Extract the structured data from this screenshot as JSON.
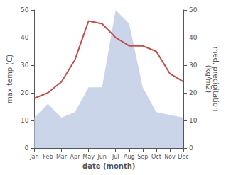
{
  "chart_data": {
    "type": "line",
    "categories": [
      "Jan",
      "Feb",
      "Mar",
      "Apr",
      "May",
      "Jun",
      "Jul",
      "Aug",
      "Sep",
      "Oct",
      "Nov",
      "Dec"
    ],
    "xlabel": "date (month)",
    "ylabel": "max temp (C)",
    "y2label": "med. precipitation\n(kg/m2)",
    "ylim": [
      0,
      50
    ],
    "yticks": [
      0,
      10,
      20,
      30,
      40,
      50
    ],
    "y2lim": [
      0,
      50
    ],
    "y2ticks": [
      0,
      10,
      20,
      30,
      40,
      50
    ],
    "grid": false,
    "series": [
      {
        "type": "line",
        "color": "#c0504d",
        "values": [
          18,
          20,
          24,
          32,
          46,
          45,
          40,
          37,
          37,
          35,
          27,
          24
        ]
      },
      {
        "type": "area",
        "color": "#c5d0e8",
        "axis": "y2",
        "values": [
          11,
          16,
          11,
          13,
          22,
          22,
          50,
          45,
          22,
          13,
          12,
          11
        ]
      }
    ]
  }
}
